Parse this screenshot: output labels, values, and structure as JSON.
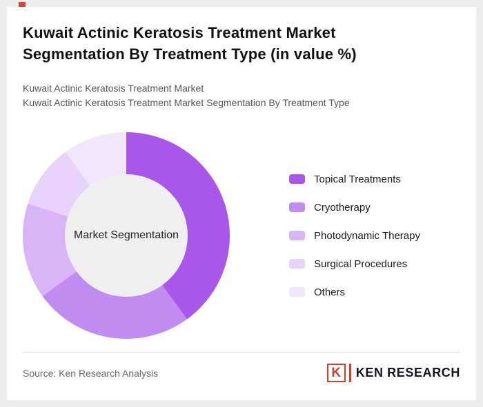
{
  "header": {
    "title_line1": "Kuwait Actinic Keratosis Treatment Market",
    "title_line2": "Segmentation By Treatment Type (in value %)",
    "subtitle1": "Kuwait Actinic Keratosis Treatment Market",
    "subtitle2": "Kuwait Actinic Keratosis Treatment Market Segmentation By Treatment Type"
  },
  "chart_data": {
    "type": "pie",
    "variant": "donut",
    "title": "Kuwait Actinic Keratosis Treatment Market Segmentation By Treatment Type (in value %)",
    "center_label": "Market Segmentation",
    "legend_position": "right",
    "start_angle_deg": 0,
    "direction": "clockwise",
    "series": [
      {
        "name": "Topical Treatments",
        "value": 40,
        "color": "#a957eb"
      },
      {
        "name": "Cryotherapy",
        "value": 25,
        "color": "#c18cf2"
      },
      {
        "name": "Photodynamic Therapy",
        "value": 15,
        "color": "#d9b5f8"
      },
      {
        "name": "Surgical Procedures",
        "value": 10,
        "color": "#e8d3fb"
      },
      {
        "name": "Others",
        "value": 10,
        "color": "#f2e6fd"
      }
    ],
    "hole_color": "#efefef"
  },
  "footer": {
    "source": "Source: Ken Research Analysis",
    "logo_letter": "K",
    "logo_text": "KEN RESEARCH",
    "logo_accent_color": "#d63a2b"
  }
}
